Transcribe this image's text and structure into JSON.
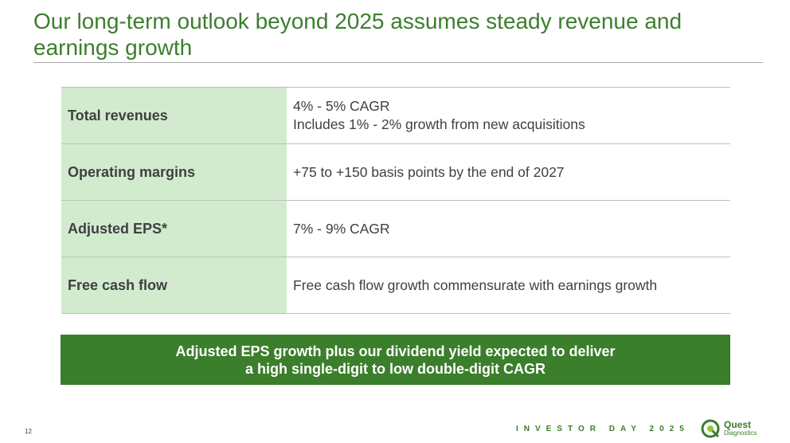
{
  "slide": {
    "title": "Our long-term outlook beyond 2025 assumes steady revenue and earnings growth",
    "page_number": "12",
    "footer_label": "INVESTOR DAY 2025"
  },
  "table": {
    "rows": [
      {
        "label": "Total revenues",
        "value_line1": "4% - 5% CAGR",
        "value_line2": "Includes 1% - 2% growth from new acquisitions"
      },
      {
        "label": "Operating margins",
        "value_line1": "+75 to +150 basis points by the end of 2027"
      },
      {
        "label": "Adjusted EPS*",
        "value_line1": "7% - 9% CAGR"
      },
      {
        "label": "Free cash flow",
        "value_line1": "Free cash flow growth commensurate with earnings growth"
      }
    ]
  },
  "callout": {
    "line1": "Adjusted EPS growth plus our dividend yield expected to deliver",
    "line2": "a high single-digit to low double-digit CAGR"
  },
  "logo": {
    "name": "Quest",
    "subname": "Diagnostics",
    "mark": "quest-diagnostics-logo-icon"
  },
  "colors": {
    "brand_green": "#3b7e2b",
    "label_fill": "#d2ebcf",
    "text": "#404040",
    "rule": "#a9a9a9"
  }
}
